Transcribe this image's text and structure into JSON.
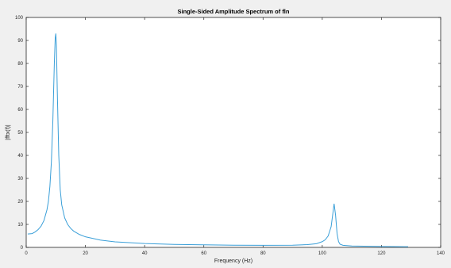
{
  "chart_data": {
    "type": "line",
    "title": "Single-Sided Amplitude Spectrum of fln",
    "xlabel": "Frequency (Hz)",
    "ylabel": "|fftx(f)|",
    "xlim": [
      0,
      140
    ],
    "ylim": [
      0,
      100
    ],
    "xticks": [
      0,
      20,
      40,
      60,
      80,
      100,
      120,
      140
    ],
    "yticks": [
      0,
      10,
      20,
      30,
      40,
      50,
      60,
      70,
      80,
      90,
      100
    ],
    "xtick_labels": [
      "0",
      "20",
      "40",
      "60",
      "80",
      "100",
      "120",
      "140"
    ],
    "ytick_labels": [
      "0",
      "10",
      "20",
      "30",
      "40",
      "50",
      "60",
      "70",
      "80",
      "90",
      "100"
    ],
    "grid": false,
    "legend": "none",
    "line_color": "#3a9fd8",
    "series": [
      {
        "x": [
          0.5,
          2,
          3,
          4,
          5,
          6,
          7,
          7.5,
          8,
          8.5,
          9,
          9.5,
          9.8,
          10,
          10.2,
          10.5,
          11,
          11.5,
          12,
          13,
          14,
          15,
          16,
          18,
          20,
          25,
          30,
          40,
          50,
          60,
          70,
          80,
          90,
          95,
          98,
          100,
          101,
          102,
          103,
          103.5,
          104,
          104.5,
          105,
          105.5,
          106,
          107,
          110,
          120,
          129
        ],
        "y": [
          5.8,
          6.0,
          6.7,
          7.7,
          9.2,
          11.7,
          16.3,
          20.0,
          26.5,
          37.0,
          55.0,
          80.0,
          91.0,
          93.0,
          88.0,
          68.0,
          40.0,
          25.0,
          18.5,
          12.8,
          10.0,
          8.3,
          7.1,
          5.6,
          4.6,
          3.2,
          2.4,
          1.7,
          1.3,
          1.1,
          0.95,
          0.9,
          0.95,
          1.2,
          1.6,
          2.5,
          3.3,
          5.0,
          9.0,
          14.0,
          19.0,
          14.0,
          6.0,
          2.5,
          1.4,
          0.9,
          0.6,
          0.4,
          0.3
        ]
      }
    ]
  }
}
